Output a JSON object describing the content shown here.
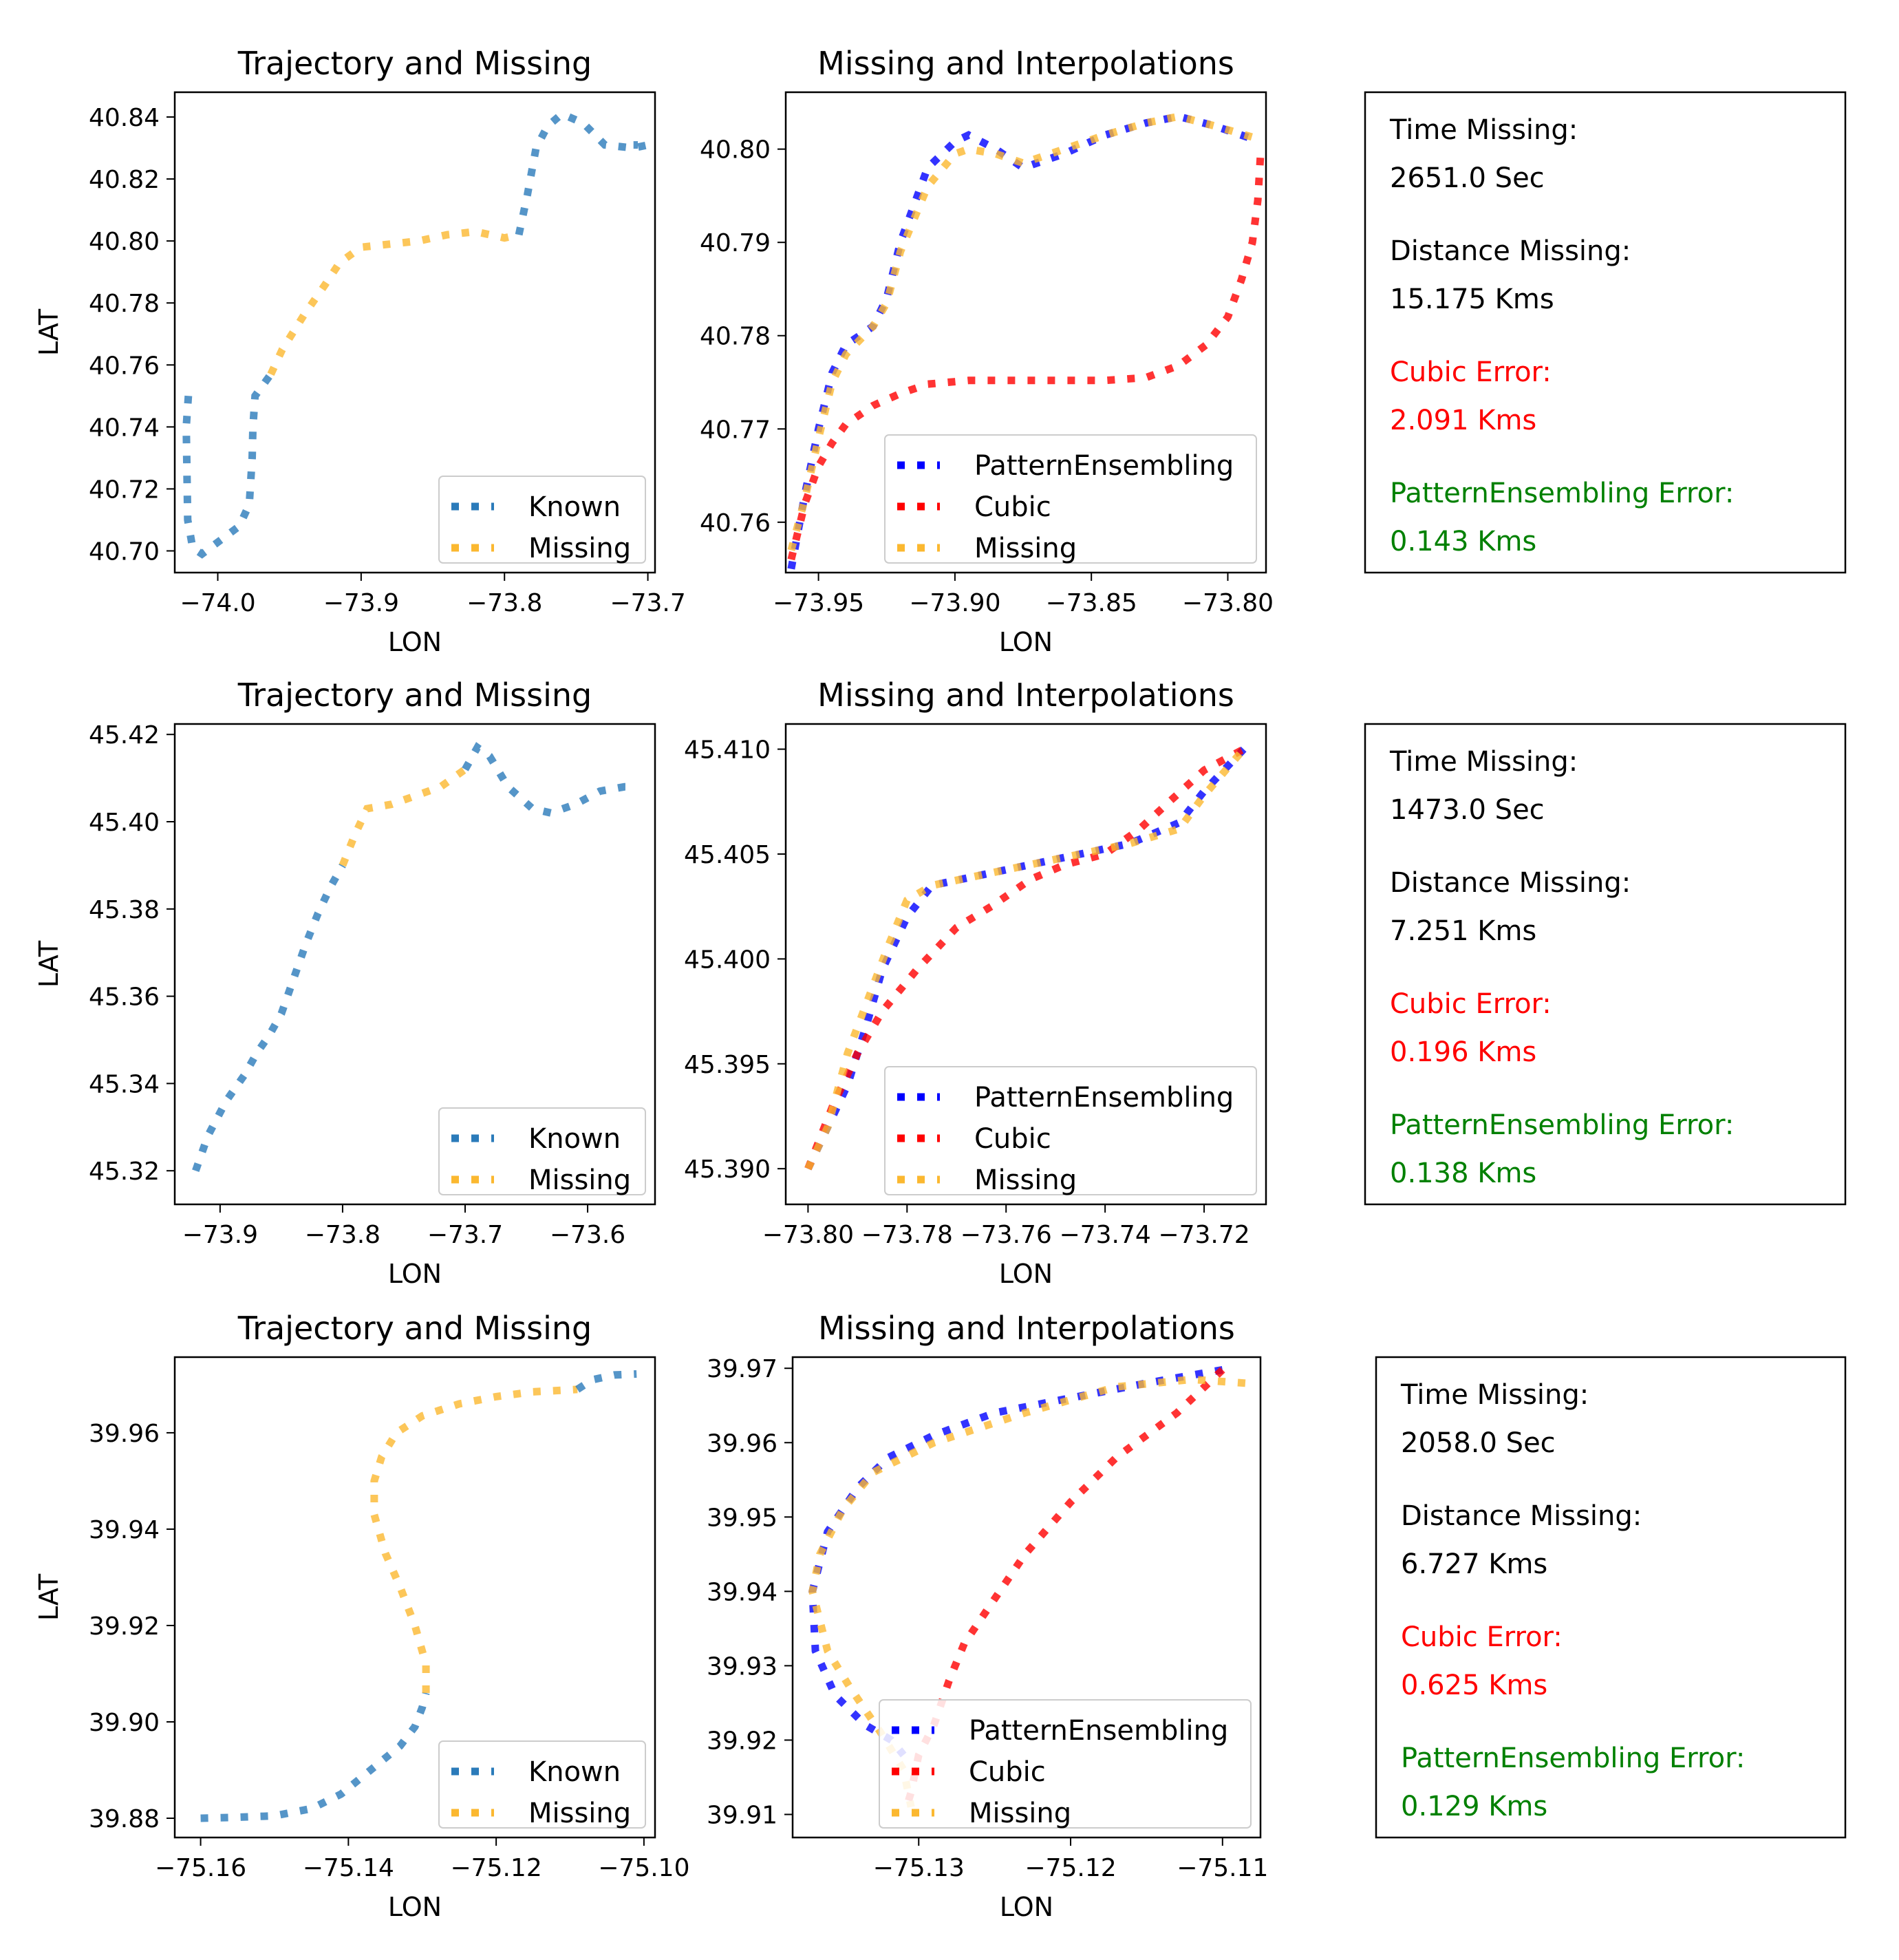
{
  "colors": {
    "known": "#2b7bba",
    "missing": "#fbb830",
    "pattern": "#0000ff",
    "cubic": "#ff0000",
    "error_green": "#008000",
    "error_red": "#ff0000"
  },
  "chart_data": [
    {
      "type": "line",
      "title": "Trajectory and Missing",
      "xlabel": "LON",
      "ylabel": "LAT",
      "xlim": [
        -74.03,
        -73.695
      ],
      "ylim": [
        40.693,
        40.848
      ],
      "xticks": [
        -74.0,
        -73.9,
        -73.8,
        -73.7
      ],
      "xtick_labels": [
        "−74.0",
        "−73.9",
        "−73.8",
        "−73.7"
      ],
      "yticks": [
        40.7,
        40.72,
        40.74,
        40.76,
        40.78,
        40.8,
        40.82,
        40.84
      ],
      "ytick_labels": [
        "40.70",
        "40.72",
        "40.74",
        "40.76",
        "40.78",
        "40.80",
        "40.82",
        "40.84"
      ],
      "legend": [
        "Known",
        "Missing"
      ],
      "series": [
        {
          "name": "Known",
          "x": [
            -74.0205,
            -74.022,
            -74.021,
            -74.0175,
            -74.011,
            -73.985,
            -73.978,
            -73.976,
            -73.9755,
            -73.974,
            -73.963
          ],
          "y": [
            40.75,
            40.74,
            40.71,
            40.701,
            40.699,
            40.708,
            40.715,
            40.73,
            40.74,
            40.75,
            40.757
          ]
        },
        {
          "name": "Missing",
          "x": [
            -73.963,
            -73.955,
            -73.94,
            -73.925,
            -73.915,
            -73.9,
            -73.88,
            -73.86,
            -73.84,
            -73.82,
            -73.8,
            -73.79
          ],
          "y": [
            40.757,
            40.765,
            40.776,
            40.786,
            40.793,
            40.798,
            40.799,
            40.8,
            40.802,
            40.803,
            40.801,
            40.802
          ]
        },
        {
          "name": "Known",
          "x": [
            -73.79,
            -73.784,
            -73.778,
            -73.77,
            -73.76,
            -73.745,
            -73.73,
            -73.71,
            -73.7,
            -73.71
          ],
          "y": [
            40.802,
            40.815,
            40.83,
            40.837,
            40.841,
            40.838,
            40.831,
            40.83,
            40.831,
            40.831
          ]
        }
      ]
    },
    {
      "type": "line",
      "title": "Missing and Interpolations",
      "xlabel": "LON",
      "ylabel": "",
      "xlim": [
        -73.962,
        -73.786
      ],
      "ylim": [
        40.7546,
        40.8061
      ],
      "xticks": [
        -73.95,
        -73.9,
        -73.85,
        -73.8
      ],
      "xtick_labels": [
        "−73.95",
        "−73.90",
        "−73.85",
        "−73.80"
      ],
      "yticks": [
        40.76,
        40.77,
        40.78,
        40.79,
        40.8
      ],
      "ytick_labels": [
        "40.76",
        "40.77",
        "40.78",
        "40.79",
        "40.80"
      ],
      "legend": [
        "PatternEnsembling",
        "Cubic",
        "Missing"
      ],
      "series": [
        {
          "name": "PatternEnsembling",
          "x": [
            -73.96,
            -73.955,
            -73.95,
            -73.945,
            -73.94,
            -73.93,
            -73.925,
            -73.92,
            -73.91,
            -73.9,
            -73.895,
            -73.885,
            -73.875,
            -73.86,
            -73.845,
            -73.83,
            -73.818,
            -73.805,
            -73.79
          ],
          "y": [
            40.755,
            40.763,
            40.77,
            40.776,
            40.779,
            40.781,
            40.784,
            40.79,
            40.798,
            40.8008,
            40.8015,
            40.8,
            40.798,
            40.7995,
            40.8015,
            40.8028,
            40.8035,
            40.8025,
            40.801
          ]
        },
        {
          "name": "Cubic",
          "x": [
            -73.96,
            -73.955,
            -73.95,
            -73.945,
            -73.94,
            -73.93,
            -73.92,
            -73.91,
            -73.895,
            -73.875,
            -73.86,
            -73.845,
            -73.83,
            -73.818,
            -73.808,
            -73.8,
            -73.795,
            -73.791,
            -73.789,
            -73.788
          ],
          "y": [
            40.756,
            40.762,
            40.766,
            40.7685,
            40.7705,
            40.7725,
            40.7738,
            40.7748,
            40.7752,
            40.7752,
            40.7752,
            40.7752,
            40.7755,
            40.7768,
            40.779,
            40.782,
            40.786,
            40.79,
            40.7945,
            40.7995
          ]
        },
        {
          "name": "Missing",
          "x": [
            -73.96,
            -73.955,
            -73.95,
            -73.945,
            -73.94,
            -73.935,
            -73.93,
            -73.925,
            -73.92,
            -73.91,
            -73.9,
            -73.895,
            -73.885,
            -73.875,
            -73.86,
            -73.845,
            -73.83,
            -73.818,
            -73.805,
            -73.79
          ],
          "y": [
            40.757,
            40.7625,
            40.769,
            40.775,
            40.778,
            40.7795,
            40.781,
            40.7835,
            40.789,
            40.796,
            40.7995,
            40.8,
            40.7995,
            40.7985,
            40.8,
            40.8015,
            40.8028,
            40.8035,
            40.8025,
            40.8012
          ]
        }
      ]
    },
    {
      "type": "line",
      "title": "Trajectory and Missing",
      "xlabel": "LON",
      "ylabel": "LAT",
      "xlim": [
        -73.937,
        -73.545
      ],
      "ylim": [
        45.3123,
        45.4224
      ],
      "xticks": [
        -73.9,
        -73.8,
        -73.7,
        -73.6
      ],
      "xtick_labels": [
        "−73.9",
        "−73.8",
        "−73.7",
        "−73.6"
      ],
      "yticks": [
        45.32,
        45.34,
        45.36,
        45.38,
        45.4,
        45.42
      ],
      "ytick_labels": [
        "45.32",
        "45.34",
        "45.36",
        "45.38",
        "45.40",
        "45.42"
      ],
      "legend": [
        "Known",
        "Missing"
      ],
      "series": [
        {
          "name": "Known",
          "x": [
            -73.92,
            -73.91,
            -73.895,
            -73.88,
            -73.87,
            -73.86,
            -73.85,
            -73.84,
            -73.83,
            -73.82,
            -73.81,
            -73.8
          ],
          "y": [
            45.32,
            45.328,
            45.336,
            45.342,
            45.347,
            45.351,
            45.356,
            45.364,
            45.372,
            45.379,
            45.385,
            45.39
          ]
        },
        {
          "name": "Missing",
          "x": [
            -73.8,
            -73.79,
            -73.78,
            -73.76,
            -73.74,
            -73.72,
            -73.7
          ],
          "y": [
            45.39,
            45.397,
            45.403,
            45.404,
            45.406,
            45.408,
            45.412
          ]
        },
        {
          "name": "Known",
          "x": [
            -73.7,
            -73.69,
            -73.68,
            -73.665,
            -73.645,
            -73.63,
            -73.61,
            -73.59,
            -73.57,
            -73.56
          ],
          "y": [
            45.412,
            45.417,
            45.415,
            45.408,
            45.403,
            45.402,
            45.404,
            45.407,
            45.408,
            45.408
          ]
        }
      ]
    },
    {
      "type": "line",
      "title": "Missing and Interpolations",
      "xlabel": "LON",
      "ylabel": "",
      "xlim": [
        -73.8045,
        -73.7075
      ],
      "ylim": [
        45.3883,
        45.4112
      ],
      "xticks": [
        -73.8,
        -73.78,
        -73.76,
        -73.74,
        -73.72
      ],
      "xtick_labels": [
        "−73.80",
        "−73.78",
        "−73.76",
        "−73.74",
        "−73.72"
      ],
      "yticks": [
        45.39,
        45.395,
        45.4,
        45.405,
        45.41
      ],
      "ytick_labels": [
        "45.390",
        "45.395",
        "45.400",
        "45.405",
        "45.410"
      ],
      "legend": [
        "PatternEnsembling",
        "Cubic",
        "Missing"
      ],
      "series": [
        {
          "name": "PatternEnsembling",
          "x": [
            -73.8,
            -73.796,
            -73.792,
            -73.788,
            -73.785,
            -73.78,
            -73.775,
            -73.765,
            -73.755,
            -73.745,
            -73.735,
            -73.725,
            -73.72,
            -73.712
          ],
          "y": [
            45.39,
            45.392,
            45.394,
            45.397,
            45.3995,
            45.402,
            45.4035,
            45.404,
            45.4045,
            45.405,
            45.4055,
            45.4065,
            45.408,
            45.41
          ]
        },
        {
          "name": "Cubic",
          "x": [
            -73.8,
            -73.795,
            -73.79,
            -73.785,
            -73.778,
            -73.77,
            -73.763,
            -73.755,
            -73.748,
            -73.74,
            -73.733,
            -73.727,
            -73.72,
            -73.712
          ],
          "y": [
            45.39,
            45.393,
            45.3955,
            45.3975,
            45.3995,
            45.4015,
            45.4025,
            45.4038,
            45.4045,
            45.405,
            45.4062,
            45.4075,
            45.409,
            45.41
          ]
        },
        {
          "name": "Missing",
          "x": [
            -73.8,
            -73.796,
            -73.792,
            -73.788,
            -73.784,
            -73.78,
            -73.775,
            -73.765,
            -73.755,
            -73.745,
            -73.735,
            -73.725,
            -73.72,
            -73.712
          ],
          "y": [
            45.39,
            45.392,
            45.3955,
            45.398,
            45.4005,
            45.4028,
            45.4035,
            45.404,
            45.4045,
            45.405,
            45.4055,
            45.4062,
            45.4078,
            45.41
          ]
        }
      ]
    },
    {
      "type": "line",
      "title": "Trajectory and Missing",
      "xlabel": "LON",
      "ylabel": "LAT",
      "xlim": [
        -75.1635,
        -75.0985
      ],
      "ylim": [
        39.876,
        39.9757
      ],
      "xticks": [
        -75.16,
        -75.14,
        -75.12,
        -75.1
      ],
      "xtick_labels": [
        "−75.16",
        "−75.14",
        "−75.12",
        "−75.10"
      ],
      "yticks": [
        39.88,
        39.9,
        39.92,
        39.94,
        39.96
      ],
      "ytick_labels": [
        "39.88",
        "39.90",
        "39.92",
        "39.94",
        "39.96"
      ],
      "legend": [
        "Known",
        "Missing"
      ],
      "series": [
        {
          "name": "Known",
          "x": [
            -75.16,
            -75.155,
            -75.15,
            -75.145,
            -75.141,
            -75.137,
            -75.133,
            -75.131,
            -75.13,
            -75.1295
          ],
          "y": [
            39.88,
            39.8802,
            39.8805,
            39.882,
            39.885,
            39.89,
            39.895,
            39.899,
            39.903,
            39.906
          ]
        },
        {
          "name": "Missing",
          "x": [
            -75.1295,
            -75.1295,
            -75.131,
            -75.133,
            -75.135,
            -75.1365,
            -75.1365,
            -75.1355,
            -75.1335,
            -75.13,
            -75.125,
            -75.12,
            -75.115,
            -75.109
          ],
          "y": [
            39.906,
            39.912,
            39.92,
            39.928,
            39.935,
            39.943,
            39.95,
            39.955,
            39.96,
            39.9635,
            39.966,
            39.9675,
            39.9685,
            39.969
          ]
        },
        {
          "name": "Known",
          "x": [
            -75.109,
            -75.107,
            -75.104,
            -75.101
          ],
          "y": [
            39.969,
            39.971,
            39.972,
            39.9722
          ]
        }
      ]
    },
    {
      "type": "line",
      "title": "Missing and Interpolations",
      "xlabel": "LON",
      "ylabel": "",
      "xlim": [
        -75.1383,
        -75.1075
      ],
      "ylim": [
        39.9069,
        39.9715
      ],
      "xticks": [
        -75.13,
        -75.12,
        -75.11
      ],
      "xtick_labels": [
        "−75.13",
        "−75.12",
        "−75.11"
      ],
      "yticks": [
        39.91,
        39.92,
        39.93,
        39.94,
        39.95,
        39.96,
        39.97
      ],
      "ytick_labels": [
        "39.91",
        "39.92",
        "39.93",
        "39.94",
        "39.95",
        "39.96",
        "39.97"
      ],
      "legend": [
        "PatternEnsembling",
        "Cubic",
        "Missing"
      ],
      "series": [
        {
          "name": "PatternEnsembling",
          "x": [
            -75.11,
            -75.115,
            -75.12,
            -75.125,
            -75.129,
            -75.132,
            -75.134,
            -75.136,
            -75.137,
            -75.1368,
            -75.1355,
            -75.1335,
            -75.1318,
            -75.131
          ],
          "y": [
            39.9698,
            39.968,
            39.966,
            39.964,
            39.961,
            39.958,
            39.954,
            39.948,
            39.94,
            39.932,
            39.926,
            39.922,
            39.92,
            39.918
          ]
        },
        {
          "name": "Cubic",
          "x": [
            -75.11,
            -75.113,
            -75.117,
            -75.12,
            -75.123,
            -75.125,
            -75.127,
            -75.128,
            -75.129,
            -75.13,
            -75.1305,
            -75.1308
          ],
          "y": [
            39.9698,
            39.964,
            39.958,
            39.952,
            39.945,
            39.939,
            39.933,
            39.928,
            39.922,
            39.918,
            39.913,
            39.911
          ]
        },
        {
          "name": "Missing",
          "x": [
            -75.1085,
            -75.112,
            -75.117,
            -75.123,
            -75.129,
            -75.133,
            -75.135,
            -75.1365,
            -75.137,
            -75.136,
            -75.1345,
            -75.1325,
            -75.131,
            -75.1305
          ],
          "y": [
            39.968,
            39.9685,
            39.9675,
            39.964,
            39.96,
            39.956,
            39.951,
            39.945,
            39.94,
            39.932,
            39.927,
            39.921,
            39.916,
            39.911
          ]
        }
      ]
    }
  ],
  "info_panels": [
    {
      "time_label": "Time Missing:",
      "time_value": "2651.0 Sec",
      "distance_label": "Distance Missing:",
      "distance_value": "15.175 Kms",
      "cubic_label": "Cubic Error:",
      "cubic_value": "2.091 Kms",
      "pattern_label": "PatternEnsembling Error:",
      "pattern_value": "0.143 Kms"
    },
    {
      "time_label": "Time Missing:",
      "time_value": "1473.0 Sec",
      "distance_label": "Distance Missing:",
      "distance_value": "7.251 Kms",
      "cubic_label": "Cubic Error:",
      "cubic_value": "0.196 Kms",
      "pattern_label": "PatternEnsembling Error:",
      "pattern_value": "0.138 Kms"
    },
    {
      "time_label": "Time Missing:",
      "time_value": "2058.0 Sec",
      "distance_label": "Distance Missing:",
      "distance_value": "6.727 Kms",
      "cubic_label": "Cubic Error:",
      "cubic_value": "0.625 Kms",
      "pattern_label": "PatternEnsembling Error:",
      "pattern_value": "0.129 Kms"
    }
  ]
}
